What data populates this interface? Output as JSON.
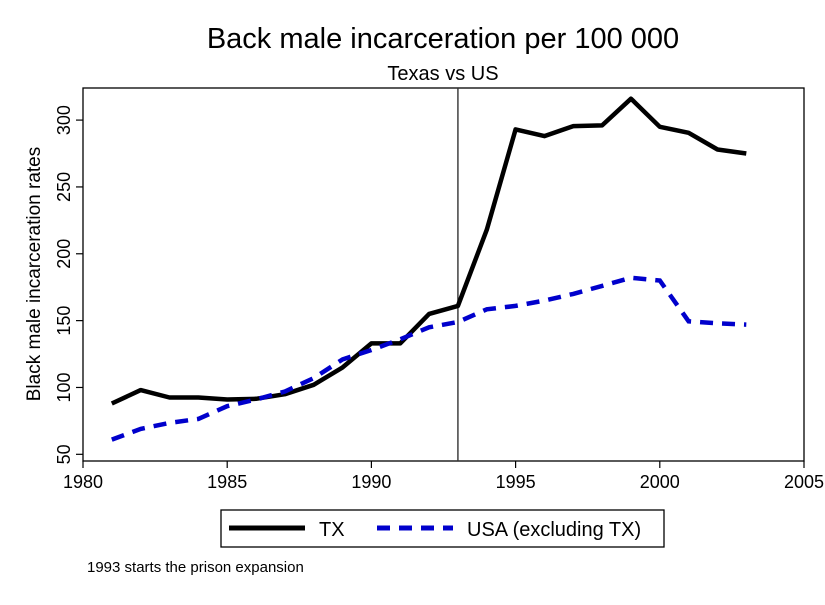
{
  "chart_data": {
    "type": "line",
    "title": "Back male incarceration per 100 000",
    "subtitle": "Texas vs US",
    "xlabel": "",
    "ylabel": "Black male incarceration rates",
    "xlim": [
      1980,
      2005
    ],
    "ylim": [
      45,
      324
    ],
    "x_ticks": [
      1980,
      1985,
      1990,
      1995,
      2000,
      2005
    ],
    "y_ticks": [
      50,
      100,
      150,
      200,
      250,
      300
    ],
    "x_tick_labels": [
      "1980",
      "1985",
      "1990",
      "1995",
      "2000",
      "2005"
    ],
    "y_tick_labels": [
      "50",
      "100",
      "150",
      "200",
      "250",
      "300"
    ],
    "grid": false,
    "vertical_reference_line": 1993,
    "x": [
      1981,
      1982,
      1983,
      1984,
      1985,
      1986,
      1987,
      1988,
      1989,
      1990,
      1991,
      1992,
      1993,
      1994,
      1995,
      1996,
      1997,
      1998,
      1999,
      2000,
      2001,
      2002,
      2003
    ],
    "series": [
      {
        "name": "TX",
        "color": "#000000",
        "dash": "solid",
        "values": [
          88,
          98,
          92.5,
          92.5,
          91,
          91.5,
          95,
          102,
          115,
          133,
          133,
          155,
          161,
          218,
          293,
          288,
          295.5,
          296,
          316,
          295,
          290.5,
          278,
          275
        ]
      },
      {
        "name": "USA (excluding TX)",
        "color": "#0000cc",
        "dash": "dashed",
        "values": [
          61,
          69,
          73.5,
          76.5,
          86,
          91,
          97,
          107,
          121,
          128,
          136,
          145,
          149,
          158.5,
          161,
          165,
          170,
          176,
          182,
          180,
          149.5,
          148,
          147
        ]
      }
    ],
    "legend": {
      "position": "bottom",
      "entries": [
        "TX",
        "USA (excluding TX)"
      ]
    },
    "note": "1993 starts the prison expansion"
  }
}
